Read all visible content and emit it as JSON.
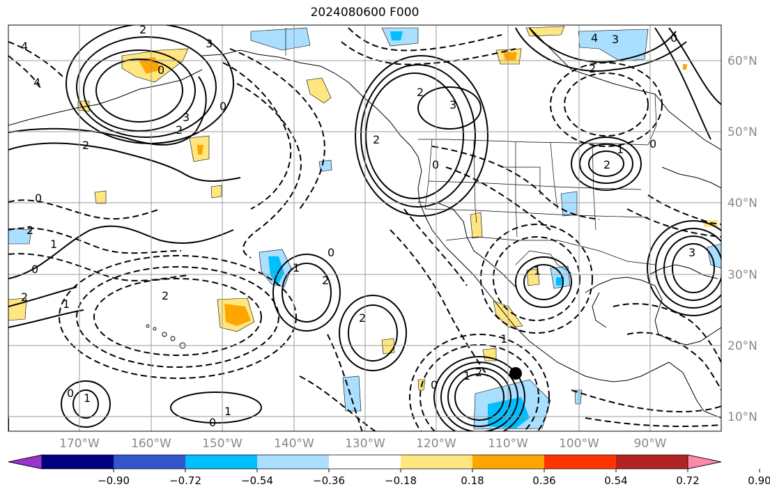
{
  "title": "2024080600 F000",
  "lat_labels": [
    "60°N",
    "50°N",
    "40°N",
    "30°N",
    "20°N",
    "10°N"
  ],
  "lon_labels": [
    "170°W",
    "160°W",
    "150°W",
    "140°W",
    "130°W",
    "120°W",
    "110°W",
    "100°W",
    "90°W"
  ],
  "colorbar": {
    "tick_labels": [
      "−0.90",
      "−0.72",
      "−0.54",
      "−0.36",
      "−0.18",
      "0.18",
      "0.36",
      "0.54",
      "0.72",
      "0.90"
    ],
    "colors": [
      "#9933cc",
      "#000080",
      "#3355cc",
      "#00bfff",
      "#aadfff",
      "#ffffff",
      "#ffe680",
      "#ffa500",
      "#ff3300",
      "#b22222",
      "#ff88aa"
    ]
  },
  "contour_labels": {
    "c1": "4",
    "c2": "4",
    "c3": "2",
    "c4": "3",
    "c5": "0",
    "c6": "2",
    "c7": "3",
    "c8": "2",
    "c9": "0",
    "c10": "2",
    "c11": "3",
    "c12": "0",
    "c13": "2",
    "c14": "4",
    "c15": "3",
    "c16": "0",
    "c17": "2",
    "c18": "0",
    "c19": "1",
    "c20": "2",
    "c21": "0",
    "c22": "1",
    "c23": "2",
    "c24": "0",
    "c25": "2",
    "c26": "1",
    "c27": "2",
    "c28": "1",
    "c29": "2",
    "c30": "1",
    "c31": "0",
    "c32": "1",
    "c33": "1",
    "c34": "0",
    "c35": "0",
    "c36": "1",
    "c37": "2",
    "c38": "0",
    "c39": "1",
    "c40": "2",
    "c41": "3"
  }
}
